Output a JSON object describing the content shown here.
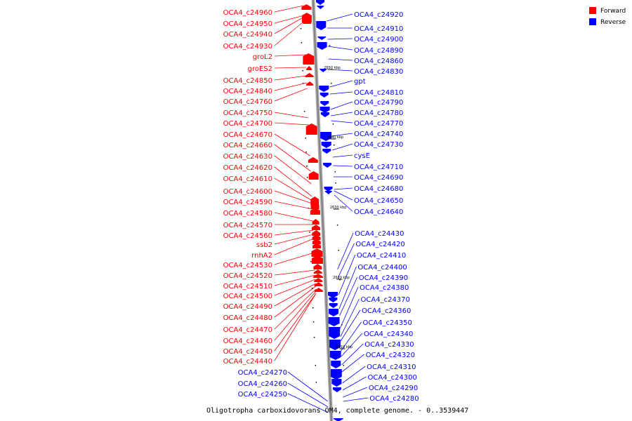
{
  "caption": "Oligotropha carboxidovorans OM4, complete genome. - 0..3539447",
  "legend": [
    {
      "label": "Forward",
      "color": "#ff0000"
    },
    {
      "label": "Reverse",
      "color": "#0000ff"
    }
  ],
  "colors": {
    "forward": "#ff0000",
    "reverse": "#0000ff",
    "backbone": "#808080"
  },
  "ticks": [
    "2650 kbp",
    "2640 kbp",
    "2630 kbp",
    "2620 kbp",
    "2610 kbp"
  ],
  "forward_genes": [
    "OCA4_c24960",
    "OCA4_c24950",
    "OCA4_c24940",
    "OCA4_c24930",
    "groL2",
    "groES2",
    "OCA4_c24850",
    "OCA4_c24840",
    "OCA4_c24760",
    "OCA4_c24750",
    "OCA4_c24700",
    "OCA4_c24670",
    "OCA4_c24660",
    "OCA4_c24630",
    "OCA4_c24620",
    "OCA4_c24610",
    "OCA4_c24600",
    "OCA4_c24590",
    "OCA4_c24580",
    "OCA4_c24570",
    "OCA4_c24560",
    "ssb2",
    "rnhA2",
    "OCA4_c24530",
    "OCA4_c24520",
    "OCA4_c24510",
    "OCA4_c24500",
    "OCA4_c24490",
    "OCA4_c24480",
    "OCA4_c24470",
    "OCA4_c24460",
    "OCA4_c24450",
    "OCA4_c24440"
  ],
  "left_reverse_genes": [
    "OCA4_c24270",
    "OCA4_c24260",
    "OCA4_c24250"
  ],
  "reverse_genes": [
    "OCA4_c24920",
    "OCA4_c24910",
    "OCA4_c24900",
    "OCA4_c24890",
    "OCA4_c24860",
    "OCA4_c24830",
    "gpt",
    "OCA4_c24810",
    "OCA4_c24790",
    "OCA4_c24780",
    "OCA4_c24770",
    "OCA4_c24740",
    "OCA4_c24730",
    "cysE",
    "OCA4_c24710",
    "OCA4_c24690",
    "OCA4_c24680",
    "OCA4_c24650",
    "OCA4_c24640",
    "OCA4_c24430",
    "OCA4_c24420",
    "OCA4_c24410",
    "OCA4_c24400",
    "OCA4_c24390",
    "OCA4_c24380",
    "OCA4_c24370",
    "OCA4_c24360",
    "OCA4_c24350",
    "OCA4_c24340",
    "OCA4_c24330",
    "OCA4_c24320",
    "OCA4_c24310",
    "OCA4_c24300",
    "OCA4_c24290",
    "OCA4_c24280"
  ]
}
